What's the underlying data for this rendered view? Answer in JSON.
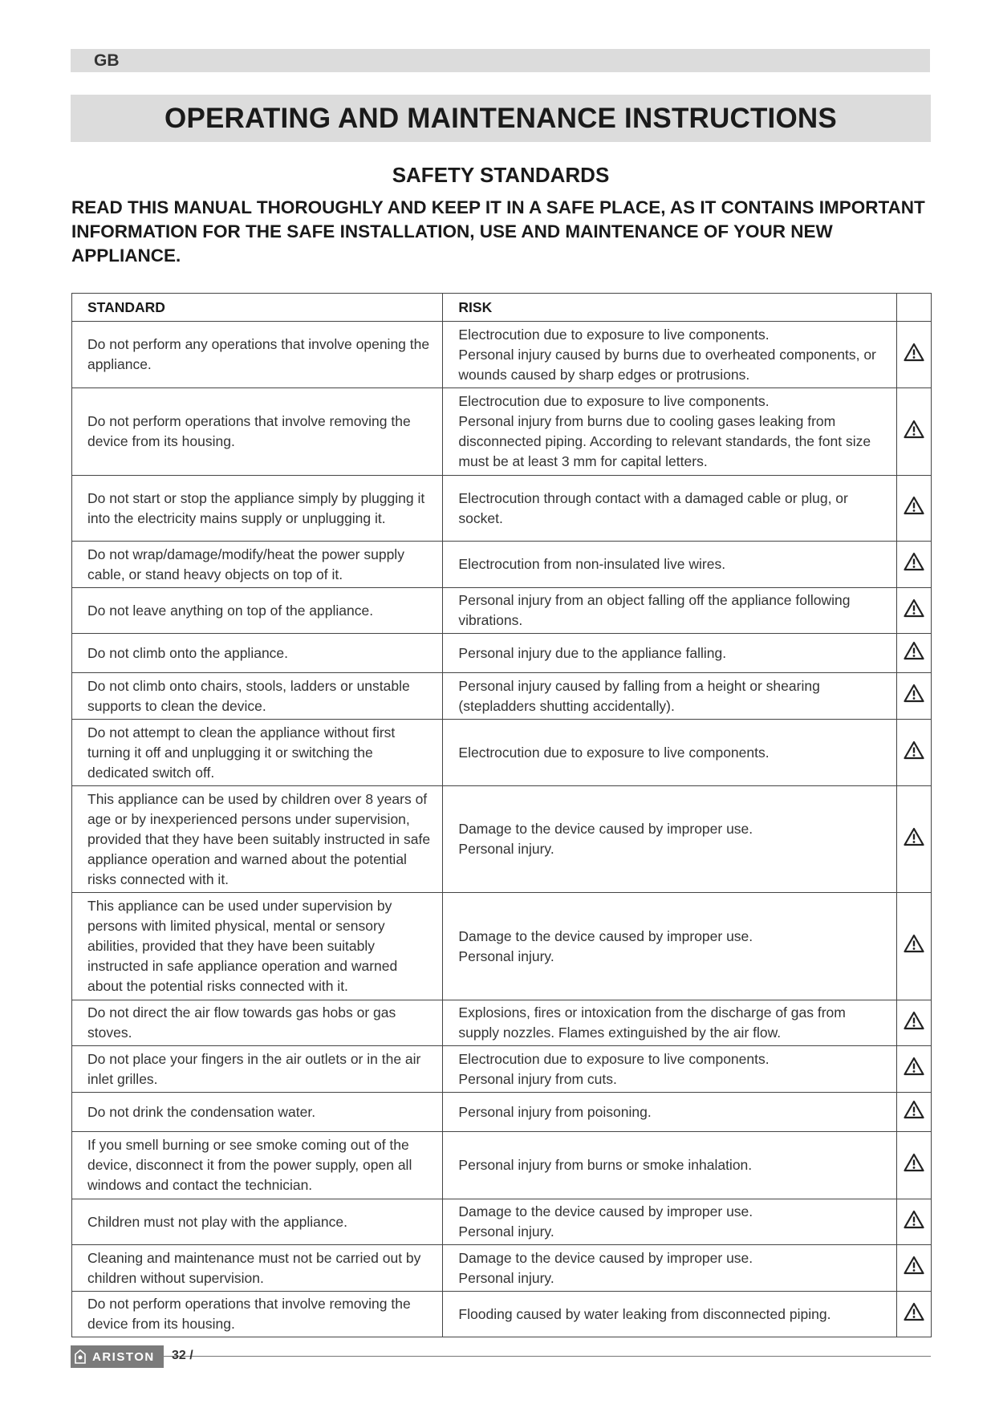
{
  "header": {
    "lang": "GB",
    "title": "OPERATING AND MAINTENANCE INSTRUCTIONS",
    "subtitle": "SAFETY STANDARDS",
    "intro": "READ THIS MANUAL THOROUGHLY AND KEEP IT IN A SAFE PLACE, AS IT CONTAINS IMPORTANT INFORMATION FOR THE SAFE INSTALLATION, USE AND MAINTENANCE OF YOUR NEW APPLIANCE."
  },
  "table": {
    "columns": [
      "STANDARD",
      "RISK",
      ""
    ],
    "icon": "warning-triangle-icon",
    "rows": [
      {
        "standard": "Do not perform any operations that involve opening the appliance.",
        "risk": "Electrocution due to exposure to live components.\nPersonal injury caused by burns due to overheated components, or wounds caused by sharp edges or protrusions."
      },
      {
        "standard": "Do not perform operations that involve removing the device from its housing.",
        "risk": "Electrocution due to exposure to live components.\nPersonal injury from burns due to cooling gases leaking from disconnected piping. According to relevant standards, the font size must be at least 3 mm for capital letters."
      },
      {
        "standard": "Do not start or stop the appliance simply by plugging it into the electricity mains supply or unplugging it.",
        "risk": "Electrocution through contact with a damaged cable or plug, or socket."
      },
      {
        "standard": "Do not wrap/damage/modify/heat the power supply cable, or stand heavy objects on top of it.",
        "risk": "Electrocution from non-insulated live wires."
      },
      {
        "standard": "Do not leave anything on top of the appliance.",
        "risk": "Personal injury from an object falling off the appliance following vibrations."
      },
      {
        "standard": "Do not climb onto the appliance.",
        "risk": "Personal injury due to the appliance falling."
      },
      {
        "standard": "Do not climb onto chairs, stools, ladders or unstable supports to clean the device.",
        "risk": "Personal injury caused by falling from a height or shearing (stepladders shutting accidentally)."
      },
      {
        "standard": "Do not attempt to clean the appliance without first turning it off and unplugging it or switching the dedicated switch off.",
        "risk": "Electrocution due to exposure to live components."
      },
      {
        "standard": "This appliance can be used by children over 8 years of age or by inexperienced persons under supervision, provided that they have been suitably instructed in safe appliance operation and warned about the potential risks connected with it.",
        "risk": "Damage to the device caused by improper use.\nPersonal injury."
      },
      {
        "standard": "This appliance can be used under supervision by persons with limited physical, mental or sensory abilities, provided that they have been suitably instructed in safe appliance operation and warned about the potential risks connected with it.",
        "risk": "Damage to the device caused by improper use.\nPersonal injury."
      },
      {
        "standard": "Do not direct the air flow towards gas hobs or gas stoves.",
        "risk": "Explosions, fires or intoxication from the discharge of gas from supply nozzles. Flames extinguished by the air flow."
      },
      {
        "standard": "Do not place your fingers in the air outlets or in the air inlet grilles.",
        "risk": "Electrocution due to exposure to live components.\nPersonal injury from cuts."
      },
      {
        "standard": "Do not drink the condensation water.",
        "risk": "Personal injury from poisoning."
      },
      {
        "standard": "If you smell burning or see smoke coming out of the device, disconnect it from the power supply, open all windows and contact the technician.",
        "risk": "Personal injury from burns or smoke inhalation."
      },
      {
        "standard": "Children must not play with the appliance.",
        "risk": "Damage to the device caused by improper use.\nPersonal injury."
      },
      {
        "standard": "Cleaning and maintenance must not be carried out by children without supervision.",
        "risk": "Damage to the device caused by improper use.\nPersonal injury."
      },
      {
        "standard": "Do not perform operations that involve removing the device from its housing.",
        "risk": "Flooding caused by water leaking from disconnected piping."
      }
    ]
  },
  "footer": {
    "brand": "ARISTON",
    "page": "32 /"
  }
}
